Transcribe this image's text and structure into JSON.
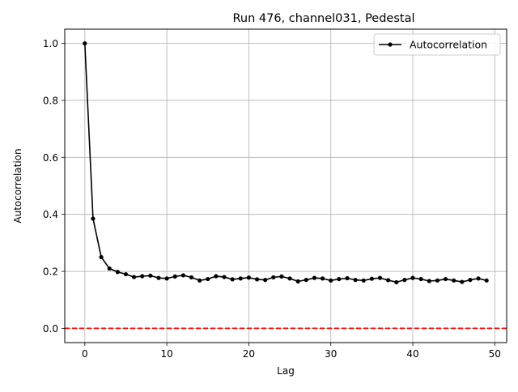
{
  "chart_data": {
    "type": "line",
    "title": "Run 476, channel031, Pedestal",
    "xlabel": "Lag",
    "ylabel": "Autocorrelation",
    "xlim": [
      -2.45,
      51.45
    ],
    "ylim": [
      -0.05,
      1.05
    ],
    "xticks": [
      0,
      10,
      20,
      30,
      40,
      50
    ],
    "yticks": [
      0.0,
      0.2,
      0.4,
      0.6,
      0.8,
      1.0
    ],
    "xtick_labels": [
      "0",
      "10",
      "20",
      "30",
      "40",
      "50"
    ],
    "ytick_labels": [
      "0.0",
      "0.2",
      "0.4",
      "0.6",
      "0.8",
      "1.0"
    ],
    "grid": true,
    "legend_position": "top-right",
    "series": [
      {
        "name": "Autocorrelation",
        "color": "#000000",
        "marker": "dot",
        "x": [
          0,
          1,
          2,
          3,
          4,
          5,
          6,
          7,
          8,
          9,
          10,
          11,
          12,
          13,
          14,
          15,
          16,
          17,
          18,
          19,
          20,
          21,
          22,
          23,
          24,
          25,
          26,
          27,
          28,
          29,
          30,
          31,
          32,
          33,
          34,
          35,
          36,
          37,
          38,
          39,
          40,
          41,
          42,
          43,
          44,
          45,
          46,
          47,
          48,
          49
        ],
        "y": [
          1.0,
          0.385,
          0.25,
          0.21,
          0.198,
          0.19,
          0.18,
          0.183,
          0.185,
          0.177,
          0.175,
          0.182,
          0.186,
          0.179,
          0.168,
          0.173,
          0.183,
          0.18,
          0.172,
          0.175,
          0.178,
          0.172,
          0.17,
          0.179,
          0.182,
          0.175,
          0.165,
          0.17,
          0.177,
          0.175,
          0.168,
          0.173,
          0.176,
          0.17,
          0.168,
          0.174,
          0.177,
          0.169,
          0.162,
          0.17,
          0.177,
          0.173,
          0.166,
          0.168,
          0.173,
          0.168,
          0.163,
          0.17,
          0.175,
          0.168
        ]
      }
    ],
    "reference_line": {
      "y": 0.0,
      "color": "#ff0000",
      "style": "dashed"
    }
  }
}
